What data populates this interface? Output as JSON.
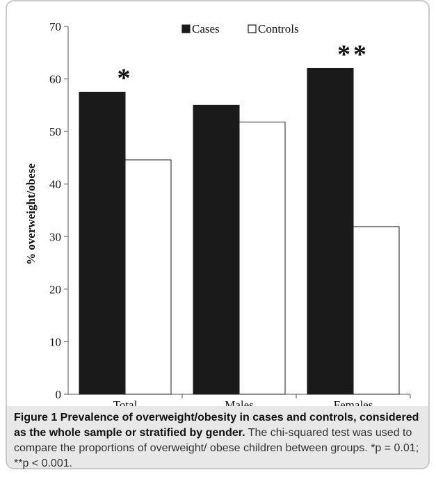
{
  "chart_data": {
    "type": "bar",
    "categories": [
      "Total",
      "Males",
      "Females"
    ],
    "series": [
      {
        "name": "Cases",
        "values": [
          57.5,
          55.0,
          62.0
        ],
        "color": "#1a1a1a"
      },
      {
        "name": "Controls",
        "values": [
          44.6,
          51.8,
          31.9
        ],
        "color": "#ffffff"
      }
    ],
    "ylabel": "% overweight/obese",
    "xlabel": "",
    "ylim": [
      0,
      70
    ],
    "yticks": [
      0,
      10,
      20,
      30,
      40,
      50,
      60,
      70
    ],
    "annotations": [
      {
        "category": "Total",
        "text": "*"
      },
      {
        "category": "Females",
        "text": "**"
      }
    ],
    "legend_position": "top",
    "grid": false
  },
  "caption": {
    "title": "Figure 1 Prevalence of overweight/obesity in cases and controls, considered as the whole sample or stratified by gender.",
    "text": "The chi-squared test was used to compare  the proportions of overweight/ obese children between groups. *p = 0.01; **p < 0.001."
  }
}
